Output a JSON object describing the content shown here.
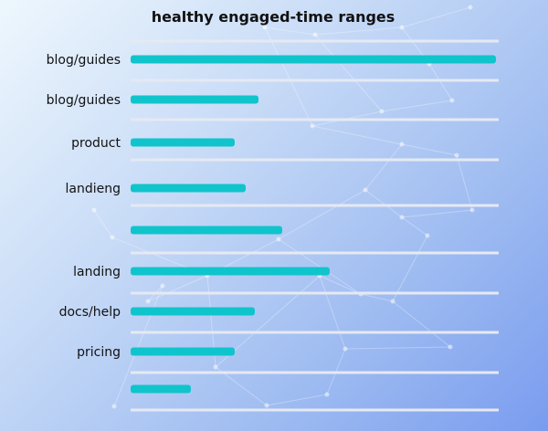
{
  "chart_data": {
    "type": "bar",
    "orientation": "horizontal",
    "title": "healthy engaged-time ranges",
    "xlabel": "",
    "ylabel": "",
    "categories": [
      "blog/guides",
      "blog/guides",
      "product",
      "landieng",
      "",
      "landing",
      "docs/help",
      "pricing",
      ""
    ],
    "values": [
      100,
      35,
      28.5,
      31.5,
      41.5,
      54.5,
      34,
      28.5,
      16.5
    ],
    "xlim": [
      0,
      100
    ],
    "grid": true,
    "legend": "none",
    "colors": {
      "bar": "#10c4cc",
      "grid": "#e6e9f2"
    }
  }
}
